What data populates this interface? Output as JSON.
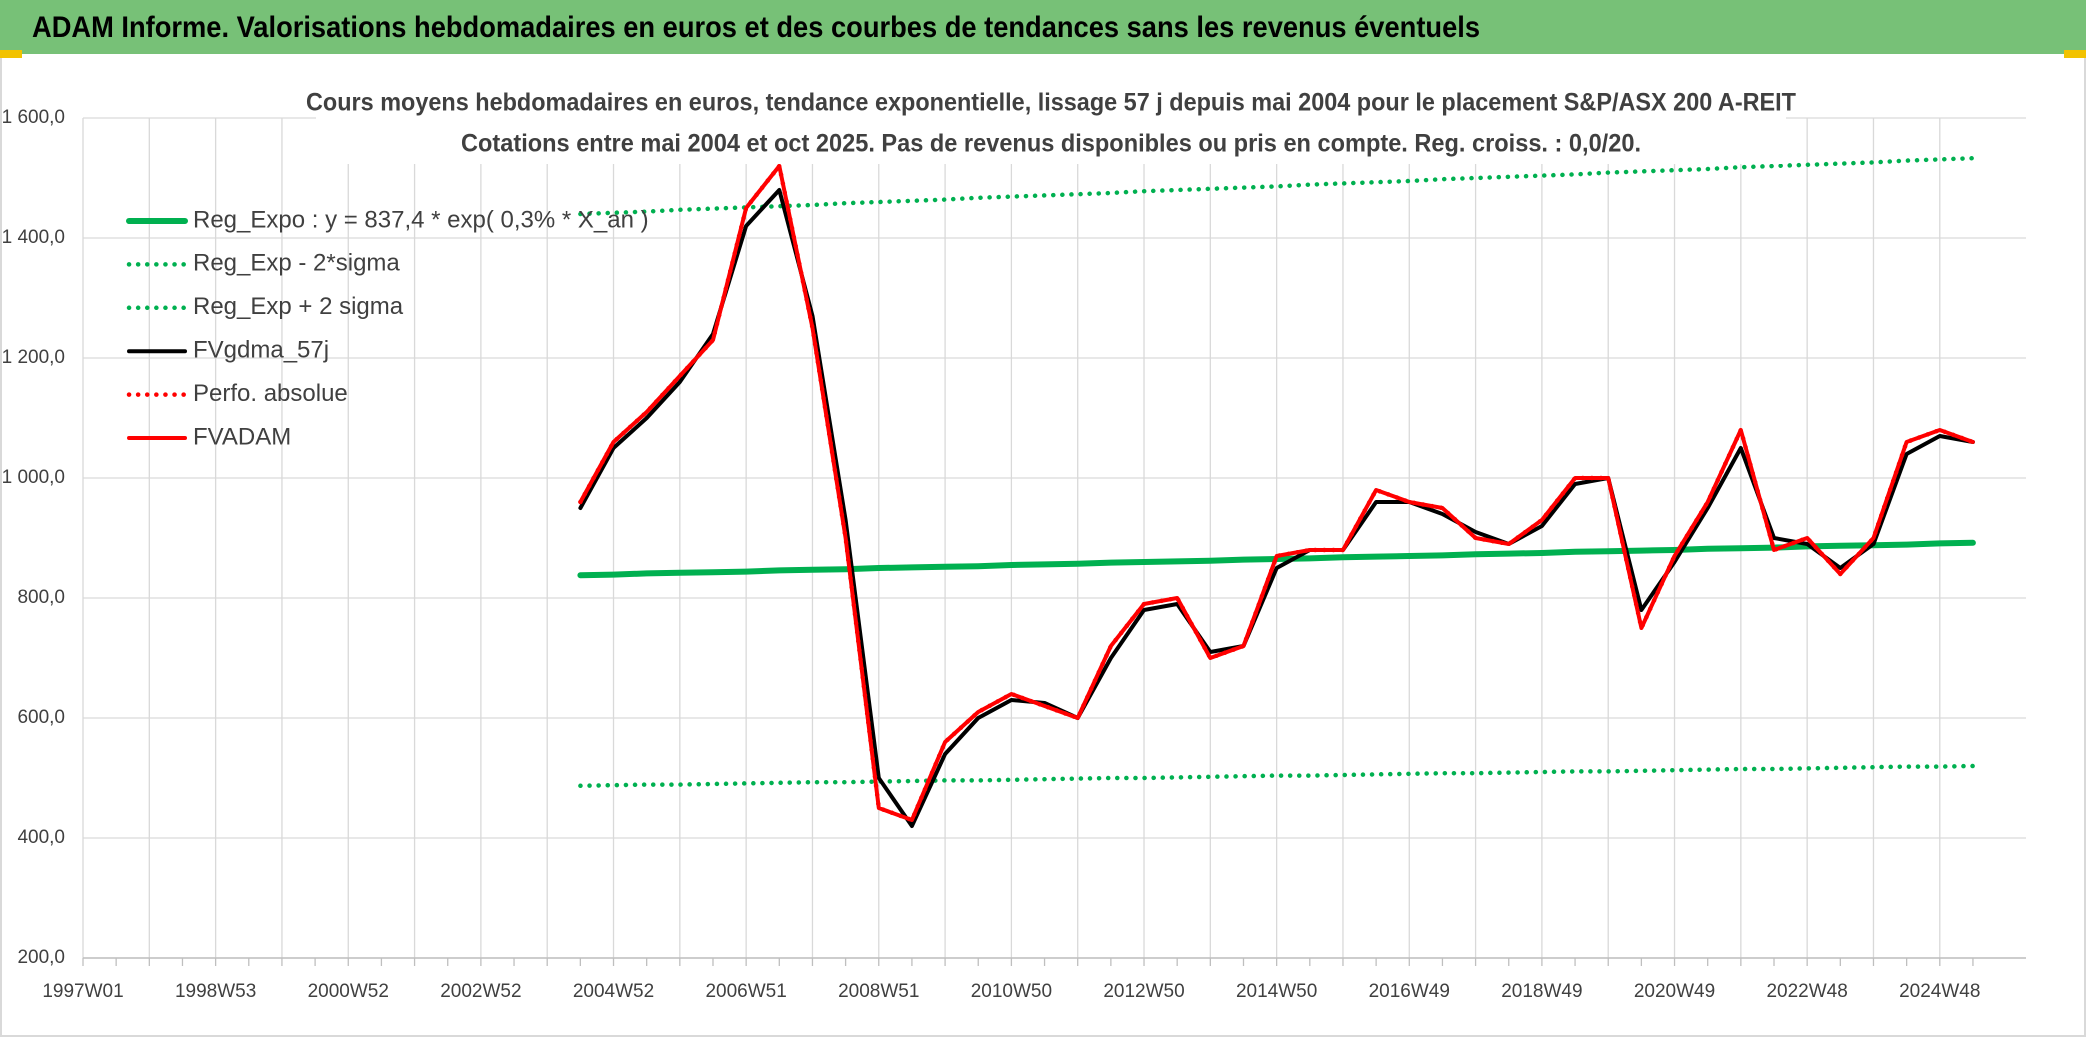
{
  "header": {
    "title": "ADAM Informe. Valorisations hebdomadaires en euros et des courbes de tendances sans les revenus éventuels"
  },
  "chart_data": {
    "type": "line",
    "title": "Cours moyens hebdomadaires en euros, tendance exponentielle, lissage 57 j depuis mai 2004 pour le placement S&P/ASX 200 A-REIT",
    "subtitle": "Cotations entre mai 2004 et oct 2025. Pas de revenus disponibles ou pris en compte. Reg. croiss. : 0,0/20.",
    "categories": [
      "1997W01",
      null,
      null,
      null,
      "1998W53",
      null,
      null,
      null,
      "2000W52",
      null,
      null,
      null,
      "2002W52",
      null,
      null,
      null,
      "2004W52",
      null,
      null,
      null,
      "2006W51",
      null,
      null,
      null,
      "2008W51",
      null,
      null,
      null,
      "2010W50",
      null,
      null,
      null,
      "2012W50",
      null,
      null,
      null,
      "2014W50",
      null,
      null,
      null,
      "2016W49",
      null,
      null,
      null,
      "2018W49",
      null,
      null,
      null,
      "2020W49",
      null,
      null,
      null,
      "2022W48",
      null,
      null,
      null,
      "2024W48",
      null
    ],
    "ylim": [
      200,
      1600
    ],
    "yticks": [
      {
        "value": 200,
        "label": "200,0"
      },
      {
        "value": 400,
        "label": "400,0"
      },
      {
        "value": 600,
        "label": "600,0"
      },
      {
        "value": 800,
        "label": "800,0"
      },
      {
        "value": 1000,
        "label": "1 000,0"
      },
      {
        "value": 1200,
        "label": "1 200,0"
      },
      {
        "value": 1400,
        "label": "1 400,0"
      },
      {
        "value": 1600,
        "label": "1 600,0"
      }
    ],
    "grid": true,
    "legend": "upper left",
    "series": [
      {
        "name": "Reg_Expo : y = 837,4 * exp( 0,3% * X_an )",
        "color": "#00b050",
        "style": "solid",
        "values": [
          null,
          null,
          null,
          null,
          null,
          null,
          null,
          null,
          null,
          null,
          null,
          null,
          null,
          null,
          null,
          838,
          839,
          841,
          842,
          843,
          844,
          846,
          847,
          848,
          850,
          851,
          852,
          853,
          855,
          856,
          857,
          859,
          860,
          861,
          862,
          864,
          865,
          866,
          868,
          869,
          870,
          871,
          873,
          874,
          875,
          877,
          878,
          879,
          880,
          882,
          883,
          884,
          886,
          887,
          888,
          889,
          891,
          892
        ]
      },
      {
        "name": "Reg_Exp - 2*sigma",
        "color": "#00b050",
        "style": "dotted",
        "values": [
          null,
          null,
          null,
          null,
          null,
          null,
          null,
          null,
          null,
          null,
          null,
          null,
          null,
          null,
          null,
          487,
          488,
          489,
          489,
          490,
          491,
          492,
          493,
          493,
          494,
          495,
          496,
          496,
          497,
          498,
          499,
          500,
          500,
          501,
          502,
          503,
          504,
          504,
          505,
          506,
          507,
          508,
          508,
          509,
          510,
          511,
          511,
          512,
          513,
          514,
          515,
          515,
          516,
          517,
          518,
          519,
          519,
          520
        ]
      },
      {
        "name": "Reg_Exp + 2 sigma",
        "color": "#00b050",
        "style": "dotted",
        "values": [
          null,
          null,
          null,
          null,
          null,
          null,
          null,
          null,
          null,
          null,
          null,
          null,
          null,
          null,
          null,
          1440,
          1442,
          1444,
          1447,
          1449,
          1451,
          1453,
          1455,
          1458,
          1460,
          1462,
          1464,
          1467,
          1469,
          1471,
          1473,
          1475,
          1478,
          1480,
          1482,
          1484,
          1486,
          1489,
          1491,
          1493,
          1495,
          1498,
          1500,
          1502,
          1504,
          1506,
          1509,
          1511,
          1513,
          1515,
          1518,
          1520,
          1522,
          1524,
          1526,
          1529,
          1531,
          1533
        ]
      },
      {
        "name": "FVgdma_57j",
        "color": "#000000",
        "style": "solid",
        "values": [
          null,
          null,
          null,
          null,
          null,
          null,
          null,
          null,
          null,
          null,
          null,
          null,
          null,
          null,
          null,
          950,
          1050,
          1100,
          1160,
          1240,
          1420,
          1480,
          1270,
          930,
          500,
          420,
          540,
          600,
          630,
          625,
          600,
          700,
          780,
          790,
          710,
          720,
          850,
          880,
          880,
          960,
          960,
          940,
          910,
          890,
          920,
          990,
          1000,
          780,
          860,
          950,
          1050,
          900,
          890,
          850,
          890,
          1040,
          1070,
          1060
        ]
      },
      {
        "name": "Perfo. absolue",
        "color": "#ff0000",
        "style": "dotted",
        "values": [
          null,
          null,
          null,
          null,
          null,
          null,
          null,
          null,
          null,
          null,
          null,
          null,
          null,
          null,
          null,
          960,
          1060,
          1110,
          1170,
          1230,
          1450,
          1520,
          1250,
          900,
          450,
          430,
          560,
          610,
          640,
          620,
          600,
          720,
          790,
          800,
          700,
          720,
          870,
          880,
          880,
          980,
          960,
          950,
          900,
          890,
          930,
          1000,
          1000,
          750,
          870,
          960,
          1080,
          880,
          900,
          840,
          900,
          1060,
          1080,
          1060
        ]
      },
      {
        "name": "FVADAM",
        "color": "#ff0000",
        "style": "solid",
        "values": [
          null,
          null,
          null,
          null,
          null,
          null,
          null,
          null,
          null,
          null,
          null,
          null,
          null,
          null,
          null,
          960,
          1060,
          1110,
          1170,
          1230,
          1450,
          1520,
          1250,
          900,
          450,
          430,
          560,
          610,
          640,
          620,
          600,
          720,
          790,
          800,
          700,
          720,
          870,
          880,
          880,
          980,
          960,
          950,
          900,
          890,
          930,
          1000,
          1000,
          750,
          870,
          960,
          1080,
          880,
          900,
          840,
          900,
          1060,
          1080,
          1060
        ]
      }
    ]
  }
}
